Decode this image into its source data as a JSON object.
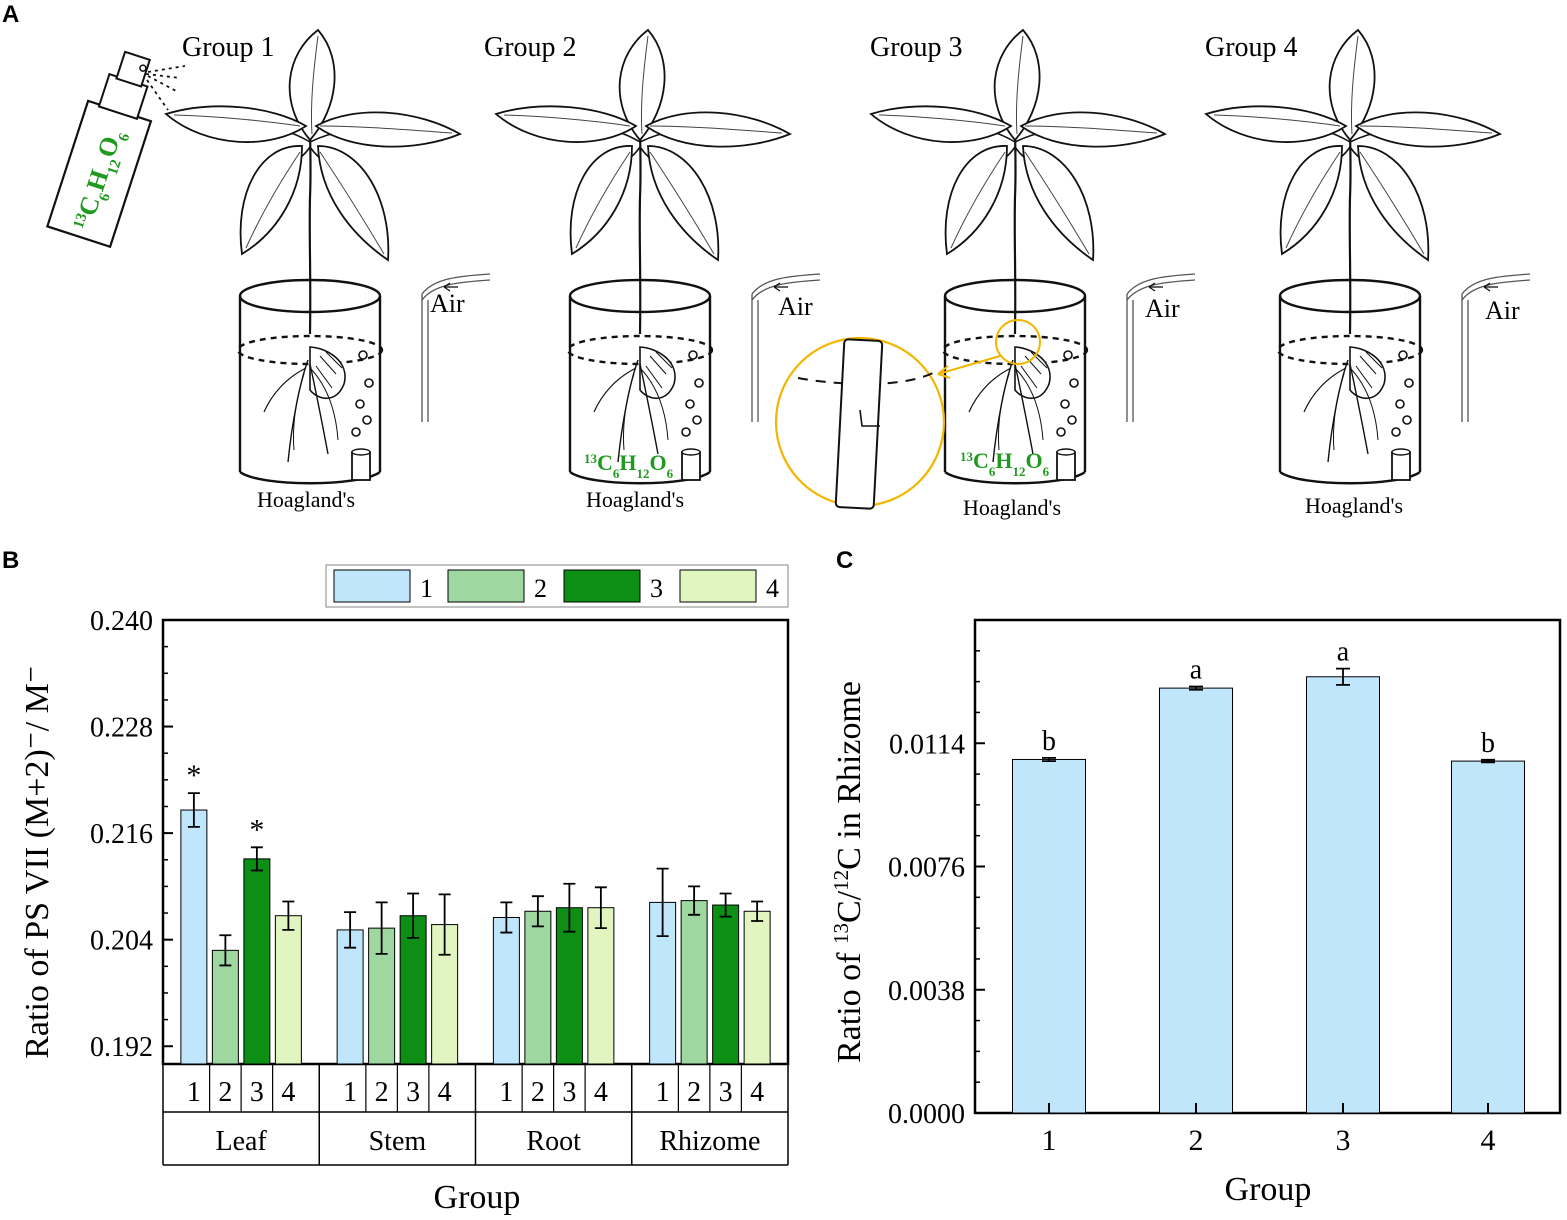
{
  "panels": {
    "a": {
      "letter": "A",
      "groups": [
        "Group 1",
        "Group 2",
        "Group 3",
        "Group 4"
      ],
      "air_label": "Air",
      "medium_label": "Hoagland's",
      "spray_formula": {
        "prefix": "13",
        "c": "C",
        "c_sub": "6",
        "h": "H",
        "h_sub": "12",
        "o": "O",
        "o_sub": "6"
      },
      "label_color": "#1f9a1f",
      "highlight_color": "#f2b600"
    },
    "b": {
      "letter": "B"
    },
    "c": {
      "letter": "C"
    }
  },
  "chart_data": [
    {
      "type": "bar",
      "panel": "B",
      "ylabel": "Ratio of  PS VII (M+2)⁻/ M⁻",
      "xlabel": "Group",
      "ylim": [
        0.19,
        0.24
      ],
      "yticks": [
        "0.192",
        "0.204",
        "0.216",
        "0.228",
        "0.240"
      ],
      "tissues": [
        "Leaf",
        "Stem",
        "Root",
        "Rhizome"
      ],
      "groups": [
        "1",
        "2",
        "3",
        "4"
      ],
      "legend": [
        "1",
        "2",
        "3",
        "4"
      ],
      "colors": [
        "#bfe6fb",
        "#9fd7a0",
        "#0d8e14",
        "#e0f5c0"
      ],
      "series": [
        {
          "name": "1",
          "values": [
            0.2186,
            0.2051,
            0.2065,
            0.2082
          ],
          "errors": [
            0.0019,
            0.002,
            0.0017,
            0.0038
          ]
        },
        {
          "name": "2",
          "values": [
            0.2028,
            0.2053,
            0.2072,
            0.2084
          ],
          "errors": [
            0.0017,
            0.0029,
            0.0017,
            0.0016
          ]
        },
        {
          "name": "3",
          "values": [
            0.2131,
            0.2067,
            0.2076,
            0.2079
          ],
          "errors": [
            0.0013,
            0.0025,
            0.0027,
            0.0013
          ]
        },
        {
          "name": "4",
          "values": [
            0.2067,
            0.2057,
            0.2076,
            0.2072
          ],
          "errors": [
            0.0016,
            0.0034,
            0.0023,
            0.0011
          ]
        }
      ],
      "annotations": [
        {
          "tissue": "Leaf",
          "group": "1",
          "text": "*"
        },
        {
          "tissue": "Leaf",
          "group": "3",
          "text": "*"
        }
      ]
    },
    {
      "type": "bar",
      "panel": "C",
      "ylabel_prefix": "Ratio of  ",
      "ylabel_sup1": "13",
      "ylabel_mid": "C/",
      "ylabel_sup2": "12",
      "ylabel_suffix": "C in Rhizome",
      "xlabel": "Group",
      "ylim": [
        0,
        0.0152
      ],
      "yticks": [
        "0.0000",
        "0.0038",
        "0.0076",
        "0.0114"
      ],
      "categories": [
        "1",
        "2",
        "3",
        "4"
      ],
      "values": [
        0.0109,
        0.0131,
        0.01345,
        0.01085
      ],
      "errors": [
        5e-05,
        5e-05,
        0.00025,
        4e-05
      ],
      "letters": [
        "b",
        "a",
        "a",
        "b"
      ],
      "color": "#bfe6fb"
    }
  ]
}
